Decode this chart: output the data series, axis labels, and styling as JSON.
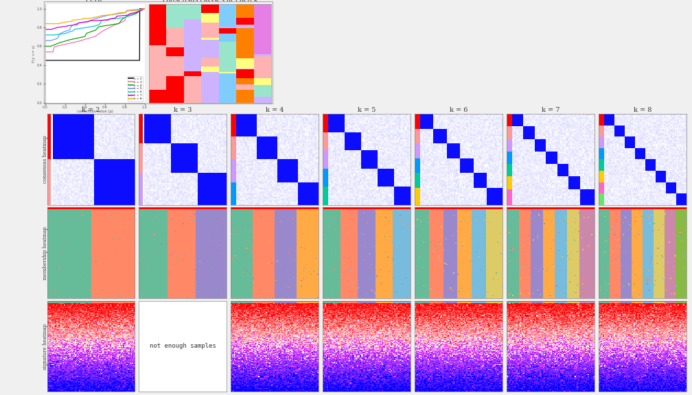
{
  "title_ecdf": "ECDF",
  "title_consensus_classes": "consensus classes at each k",
  "row_labels": [
    "consensus heatmap",
    "membership heatmap",
    "signature heatmap"
  ],
  "col_labels": [
    "k = 2",
    "k = 3",
    "k = 4",
    "k = 5",
    "k = 6",
    "k = 7",
    "k = 8"
  ],
  "not_enough_text": "not enough samples",
  "figsize": [
    10.08,
    5.76
  ],
  "dpi": 100,
  "ecdf_colors": [
    "#000000",
    "#ff69b4",
    "#00aa00",
    "#6699ff",
    "#00cccc",
    "#cc00cc",
    "#ffaa00"
  ],
  "mem_colors": [
    "#66BB99",
    "#FF8866",
    "#9988CC",
    "#FFAA44",
    "#77BBDD",
    "#DDCC66",
    "#CC88AA",
    "#88BB44"
  ],
  "bg_color": "#f0f0f0"
}
